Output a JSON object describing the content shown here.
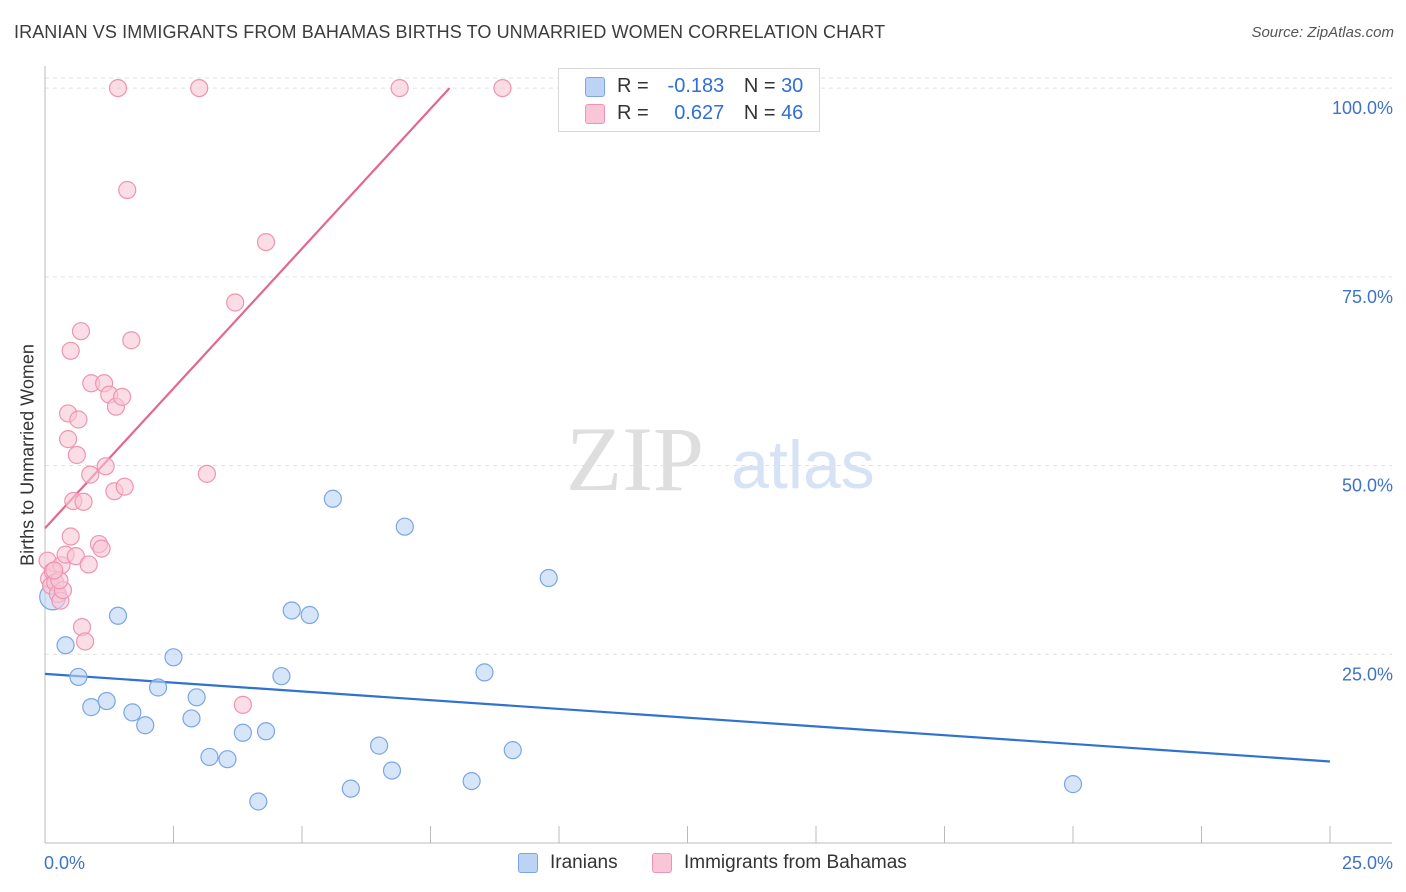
{
  "title": "IRANIAN VS IMMIGRANTS FROM BAHAMAS BIRTHS TO UNMARRIED WOMEN CORRELATION CHART",
  "source": "Source: ZipAtlas.com",
  "watermark": {
    "zip": "ZIP",
    "atlas": "atlas"
  },
  "legend_top": {
    "rows": [
      {
        "r_label": "R =",
        "r_value": "-0.183",
        "n_label": "N =",
        "n_value": "30"
      },
      {
        "r_label": "R =",
        "r_value": "0.627",
        "n_label": "N =",
        "n_value": "46"
      }
    ]
  },
  "legend_bottom": [
    "Iranians",
    "Immigrants from Bahamas"
  ],
  "colors": {
    "iranians_fill": "#bcd3f5",
    "iranians_stroke": "#7aa6e6",
    "iranians_line": "#2f72d0",
    "bahamas_fill": "#f8c6d6",
    "bahamas_stroke": "#ee94b2",
    "bahamas_line": "#e3678e",
    "axis_text": "#3f73c8",
    "grid": "#e1e1e1"
  },
  "chart_data": {
    "type": "scatter",
    "title": "IRANIAN VS IMMIGRANTS FROM BAHAMAS BIRTHS TO UNMARRIED WOMEN CORRELATION CHART",
    "xlabel": "",
    "ylabel": "Births to Unmarried Women",
    "xlim": [
      0,
      25
    ],
    "ylim": [
      0,
      102
    ],
    "x_tick_labels": [
      "0.0%",
      "25.0%"
    ],
    "y_tick_labels": [
      "25.0%",
      "50.0%",
      "75.0%",
      "100.0%"
    ],
    "y_ticks": [
      25,
      50,
      75,
      100
    ],
    "grid": true,
    "legend_position": "top-center",
    "series": [
      {
        "name": "Iranians",
        "r": -0.183,
        "n": 30,
        "points": [
          [
            0.15,
            32.6
          ],
          [
            0.4,
            26.2
          ],
          [
            0.65,
            22.0
          ],
          [
            0.9,
            18.0
          ],
          [
            1.2,
            18.8
          ],
          [
            1.42,
            30.1
          ],
          [
            1.7,
            17.3
          ],
          [
            1.95,
            15.6
          ],
          [
            2.2,
            20.6
          ],
          [
            2.5,
            24.6
          ],
          [
            2.85,
            16.5
          ],
          [
            2.95,
            19.3
          ],
          [
            3.2,
            11.4
          ],
          [
            3.55,
            11.1
          ],
          [
            3.85,
            14.6
          ],
          [
            4.15,
            5.5
          ],
          [
            4.3,
            14.8
          ],
          [
            4.6,
            22.1
          ],
          [
            4.8,
            30.8
          ],
          [
            5.15,
            30.2
          ],
          [
            5.6,
            45.6
          ],
          [
            5.95,
            7.2
          ],
          [
            6.5,
            12.9
          ],
          [
            6.75,
            9.6
          ],
          [
            7.0,
            41.9
          ],
          [
            8.3,
            8.2
          ],
          [
            8.55,
            22.6
          ],
          [
            9.1,
            12.3
          ],
          [
            9.8,
            35.1
          ],
          [
            20.0,
            7.8
          ]
        ],
        "trend": {
          "x": [
            0,
            25
          ],
          "y": [
            22.4,
            10.8
          ]
        }
      },
      {
        "name": "Immigrants from Bahamas",
        "r": 0.627,
        "n": 46,
        "points": [
          [
            0.05,
            37.4
          ],
          [
            0.08,
            35.0
          ],
          [
            0.12,
            34.1
          ],
          [
            0.15,
            36.0
          ],
          [
            0.2,
            34.5
          ],
          [
            0.25,
            33.0
          ],
          [
            0.3,
            32.1
          ],
          [
            0.32,
            36.8
          ],
          [
            0.35,
            33.5
          ],
          [
            0.4,
            38.2
          ],
          [
            0.45,
            53.5
          ],
          [
            0.45,
            56.9
          ],
          [
            0.5,
            65.2
          ],
          [
            0.5,
            40.6
          ],
          [
            0.55,
            45.3
          ],
          [
            0.6,
            38.0
          ],
          [
            0.62,
            51.4
          ],
          [
            0.65,
            56.1
          ],
          [
            0.7,
            67.8
          ],
          [
            0.72,
            28.6
          ],
          [
            0.75,
            45.2
          ],
          [
            0.78,
            26.7
          ],
          [
            0.85,
            36.9
          ],
          [
            0.88,
            48.8
          ],
          [
            0.9,
            60.9
          ],
          [
            1.05,
            39.6
          ],
          [
            1.1,
            39.0
          ],
          [
            1.15,
            60.9
          ],
          [
            1.18,
            49.9
          ],
          [
            1.25,
            59.4
          ],
          [
            1.35,
            46.6
          ],
          [
            1.38,
            57.8
          ],
          [
            1.42,
            100.0
          ],
          [
            1.5,
            59.1
          ],
          [
            1.55,
            47.2
          ],
          [
            1.6,
            86.5
          ],
          [
            1.68,
            66.6
          ],
          [
            3.0,
            100.0
          ],
          [
            3.15,
            48.9
          ],
          [
            3.7,
            71.6
          ],
          [
            3.85,
            18.3
          ],
          [
            4.3,
            79.6
          ],
          [
            6.9,
            100.0
          ],
          [
            8.9,
            100.0
          ],
          [
            0.28,
            34.8
          ],
          [
            0.18,
            36.1
          ]
        ],
        "trend": {
          "x": [
            0,
            7.87
          ],
          "y": [
            41.7,
            100.0
          ]
        }
      }
    ]
  }
}
